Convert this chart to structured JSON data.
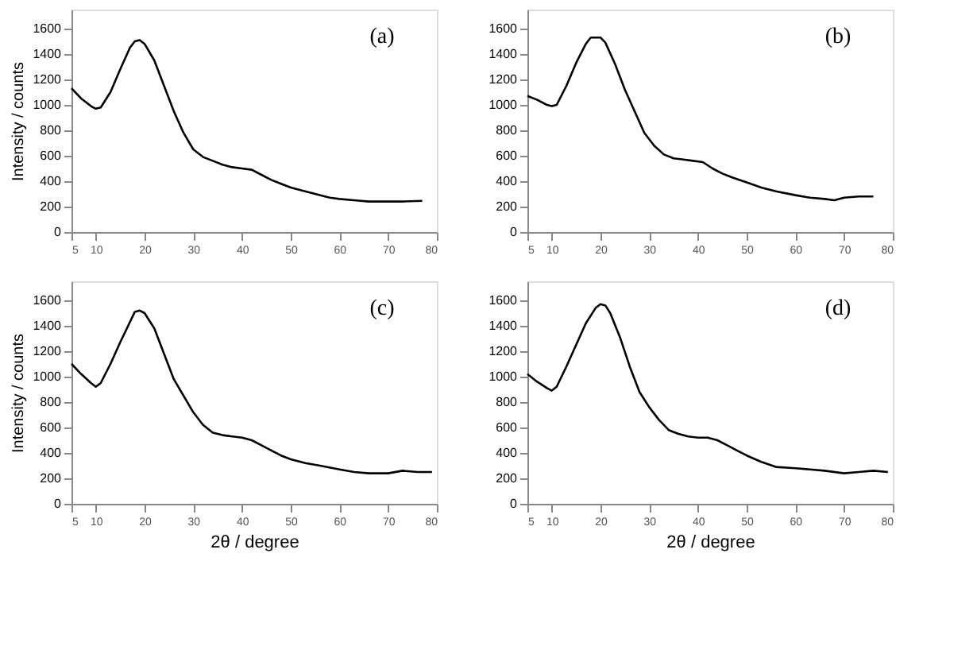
{
  "chart_data": [
    {
      "type": "line",
      "annotations": [
        "(a)"
      ],
      "ylabel": "Intensity / counts",
      "xlim": [
        5,
        80
      ],
      "xticks": [
        5,
        10,
        20,
        30,
        40,
        50,
        60,
        70,
        80
      ],
      "ylim": [
        0,
        1750
      ],
      "yticks": [
        0,
        200,
        400,
        600,
        800,
        1000,
        1200,
        1400,
        1600
      ],
      "grid": false,
      "x": [
        5,
        7,
        9,
        10,
        11,
        13,
        15,
        17,
        18,
        19,
        20,
        22,
        24,
        26,
        28,
        30,
        32,
        34,
        36,
        38,
        40,
        42,
        44,
        46,
        48,
        50,
        52,
        55,
        58,
        60,
        63,
        66,
        70,
        73,
        77
      ],
      "series": [
        {
          "color": "#000000",
          "values": [
            1130,
            1050,
            990,
            970,
            980,
            1100,
            1280,
            1450,
            1500,
            1510,
            1480,
            1350,
            1150,
            950,
            780,
            650,
            590,
            560,
            530,
            510,
            500,
            490,
            450,
            410,
            380,
            350,
            330,
            300,
            270,
            260,
            250,
            240,
            240,
            240,
            245
          ]
        }
      ]
    },
    {
      "type": "line",
      "annotations": [
        "(b)"
      ],
      "xlim": [
        5,
        80
      ],
      "xticks": [
        5,
        10,
        20,
        30,
        40,
        50,
        60,
        70,
        80
      ],
      "ylim": [
        0,
        1750
      ],
      "yticks": [
        0,
        200,
        400,
        600,
        800,
        1000,
        1200,
        1400,
        1600
      ],
      "grid": false,
      "x": [
        5,
        7,
        9,
        10,
        11,
        13,
        15,
        17,
        18,
        20,
        21,
        23,
        25,
        27,
        29,
        31,
        33,
        35,
        37,
        39,
        41,
        43,
        45,
        47,
        50,
        53,
        56,
        60,
        63,
        66,
        68,
        70,
        73,
        76
      ],
      "series": [
        {
          "color": "#000000",
          "values": [
            1070,
            1040,
            1000,
            990,
            1000,
            1150,
            1330,
            1480,
            1530,
            1530,
            1490,
            1320,
            1120,
            950,
            780,
            680,
            610,
            580,
            570,
            560,
            550,
            500,
            460,
            430,
            390,
            350,
            320,
            290,
            270,
            260,
            250,
            270,
            280,
            280
          ]
        }
      ]
    },
    {
      "type": "line",
      "annotations": [
        "(c)"
      ],
      "xlabel": "2θ / degree",
      "ylabel": "Intensity / counts",
      "xlim": [
        5,
        80
      ],
      "xticks": [
        5,
        10,
        20,
        30,
        40,
        50,
        60,
        70,
        80
      ],
      "ylim": [
        0,
        1750
      ],
      "yticks": [
        0,
        200,
        400,
        600,
        800,
        1000,
        1200,
        1400,
        1600
      ],
      "grid": false,
      "x": [
        5,
        7,
        9,
        10,
        11,
        13,
        15,
        17,
        18,
        19,
        20,
        22,
        24,
        26,
        28,
        30,
        32,
        34,
        36,
        38,
        40,
        42,
        44,
        46,
        48,
        50,
        53,
        56,
        60,
        63,
        66,
        70,
        73,
        76,
        79
      ],
      "series": [
        {
          "color": "#000000",
          "values": [
            1100,
            1020,
            950,
            920,
            950,
            1100,
            1270,
            1430,
            1510,
            1520,
            1500,
            1380,
            1180,
            980,
            850,
            720,
            620,
            560,
            540,
            530,
            520,
            500,
            460,
            420,
            380,
            350,
            320,
            300,
            270,
            250,
            240,
            240,
            260,
            250,
            250
          ]
        }
      ]
    },
    {
      "type": "line",
      "annotations": [
        "(d)"
      ],
      "xlabel": "2θ / degree",
      "xlim": [
        5,
        80
      ],
      "xticks": [
        5,
        10,
        20,
        30,
        40,
        50,
        60,
        70,
        80
      ],
      "ylim": [
        0,
        1750
      ],
      "yticks": [
        0,
        200,
        400,
        600,
        800,
        1000,
        1200,
        1400,
        1600
      ],
      "grid": false,
      "x": [
        5,
        7,
        9,
        10,
        11,
        13,
        15,
        17,
        19,
        20,
        21,
        22,
        24,
        26,
        28,
        30,
        32,
        34,
        36,
        38,
        40,
        42,
        44,
        46,
        48,
        50,
        53,
        56,
        60,
        63,
        66,
        70,
        73,
        76,
        79
      ],
      "series": [
        {
          "color": "#000000",
          "values": [
            1020,
            960,
            910,
            890,
            920,
            1080,
            1250,
            1420,
            1540,
            1570,
            1560,
            1500,
            1310,
            1080,
            880,
            760,
            660,
            580,
            550,
            530,
            520,
            520,
            500,
            460,
            420,
            380,
            330,
            290,
            280,
            270,
            260,
            240,
            250,
            260,
            250
          ]
        }
      ]
    }
  ]
}
